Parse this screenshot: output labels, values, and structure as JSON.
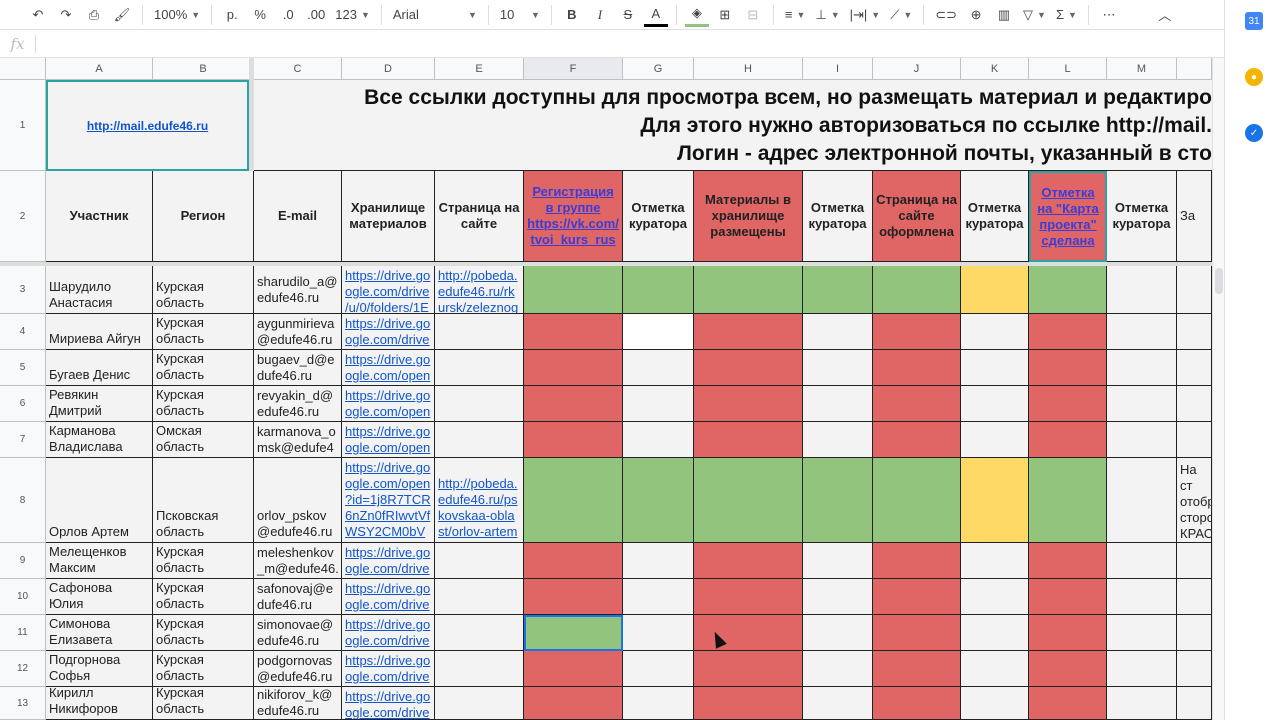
{
  "toolbar": {
    "zoom": "100%",
    "currency": "р.",
    "percent": "%",
    "dec_less": ".0",
    "dec_more": ".00",
    "format": "123",
    "font": "Arial",
    "size": "10",
    "icons": [
      "undo-icon",
      "redo-icon",
      "print-icon",
      "paint-format-icon",
      "bold-icon",
      "italic-icon",
      "strikethrough-icon",
      "text-color-icon",
      "fill-color-icon",
      "borders-icon",
      "merge-icon",
      "align-icon",
      "valign-icon",
      "wrap-icon",
      "rotate-icon",
      "link-icon",
      "comment-icon",
      "chart-icon",
      "filter-icon",
      "functions-icon",
      "more-icon",
      "collapse-icon"
    ],
    "text_color": "#000000",
    "fill_color": "#93c47d"
  },
  "formula_bar": {
    "fx": "fx",
    "value": ""
  },
  "colors": {
    "green": "#93c47d",
    "red": "#e06666",
    "yellow": "#ffd966",
    "white": "#ffffff",
    "default": "#f3f3f3"
  },
  "columns": [
    "A",
    "B",
    "C",
    "D",
    "E",
    "F",
    "G",
    "H",
    "I",
    "J",
    "K",
    "L",
    "M",
    ""
  ],
  "row_numbers": [
    "1",
    "2",
    "3",
    "4",
    "5",
    "6",
    "7",
    "8",
    "9",
    "10",
    "11",
    "12",
    "13"
  ],
  "banner": {
    "link": "http://mail.edufe46.ru",
    "lines": [
      "Все ссылки доступны для просмотра всем, но размещать материал и редактиро",
      "Для этого нужно авторизоваться по ссылке http://mail.",
      "Логин - адрес электронной почты, указанный в сто"
    ]
  },
  "headers": [
    "Участник",
    "Регион",
    "E-mail",
    "Хранилище материалов",
    "Страница на сайте",
    "Регистрация в группе https://vk.com/ tvoi_kurs_rus",
    "Отметка куратора",
    "Материалы в хранилище размещены",
    "Отметка куратора",
    "Страница на сайте оформлена",
    "Отметка куратора",
    "Отметка на \"Карта проекта\" сделана",
    "Отметка куратора",
    "За"
  ],
  "rows": [
    {
      "name": "Шарудило Анастасия",
      "region": "Курская область",
      "email": "sharudilo_a@ edufe46.ru",
      "storage": "https://drive.go ogle.com/drive /u/0/folders/1E",
      "page": "http://pobeda. edufe46.ru/rk ursk/zeleznog",
      "status": [
        "green",
        "green",
        "green",
        "green",
        "green",
        "yellow",
        "green"
      ],
      "note": ""
    },
    {
      "name": "Мириева Айгун",
      "region": "Курская область",
      "email": "aygunmirieva @edufe46.ru",
      "storage": "https://drive.go ogle.com/drive",
      "page": "",
      "status": [
        "red",
        "white",
        "red",
        "default",
        "red",
        "default",
        "red"
      ],
      "note": ""
    },
    {
      "name": "Бугаев Денис",
      "region": "Курская область",
      "email": "bugaev_d@e dufe46.ru",
      "storage": "https://drive.go ogle.com/open",
      "page": "",
      "status": [
        "red",
        "default",
        "red",
        "default",
        "red",
        "default",
        "red"
      ],
      "note": ""
    },
    {
      "name": "Ревякин Дмитрий",
      "region": "Курская область",
      "email": "revyakin_d@ edufe46.ru",
      "storage": "https://drive.go ogle.com/open",
      "page": "",
      "status": [
        "red",
        "default",
        "red",
        "default",
        "red",
        "default",
        "red"
      ],
      "note": ""
    },
    {
      "name": "Карманова Владислава",
      "region": "Омская область",
      "email": "karmanova_o msk@edufe4",
      "storage": "https://drive.go ogle.com/open",
      "page": "",
      "status": [
        "red",
        "default",
        "red",
        "default",
        "red",
        "default",
        "red"
      ],
      "note": ""
    },
    {
      "name": "Орлов Артем",
      "region": "Псковская область",
      "email": "orlov_pskov @edufe46.ru",
      "storage": "https://drive.go ogle.com/open ?id=1j8R7TCR 6nZn0fRIwvtVf WSY2CM0bV",
      "page": "http://pobeda. edufe46.ru/ps kovskaa-obla st/orlov-artem",
      "status": [
        "green",
        "green",
        "green",
        "green",
        "green",
        "yellow",
        "green"
      ],
      "note": "На ст отобр сторо КРАС Млад"
    },
    {
      "name": "Мелещенков Максим",
      "region": "Курская область",
      "email": "meleshenkov _m@edufe46.",
      "storage": "https://drive.go ogle.com/drive",
      "page": "",
      "status": [
        "red",
        "default",
        "red",
        "default",
        "red",
        "default",
        "red"
      ],
      "note": ""
    },
    {
      "name": "Сафонова Юлия",
      "region": "Курская область",
      "email": "safonovaj@e dufe46.ru",
      "storage": "https://drive.go ogle.com/drive",
      "page": "",
      "status": [
        "red",
        "default",
        "red",
        "default",
        "red",
        "default",
        "red"
      ],
      "note": ""
    },
    {
      "name": "Симонова Елизавета",
      "region": "Курская область",
      "email": "simonovae@ edufe46.ru",
      "storage": "https://drive.go ogle.com/drive",
      "page": "",
      "status": [
        "green",
        "default",
        "red",
        "default",
        "red",
        "default",
        "red"
      ],
      "note": ""
    },
    {
      "name": "Подгорнова Софья",
      "region": "Курская область",
      "email": "podgornovas @edufe46.ru",
      "storage": "https://drive.go ogle.com/drive",
      "page": "",
      "status": [
        "red",
        "default",
        "red",
        "default",
        "red",
        "default",
        "red"
      ],
      "note": ""
    },
    {
      "name": "Кирилл Никифоров",
      "region": "Курская область",
      "email": "nikiforov_k@ edufe46.ru",
      "storage": "https://drive.go ogle.com/drive",
      "page": "",
      "status": [
        "red",
        "default",
        "red",
        "default",
        "red",
        "default",
        "red"
      ],
      "note": ""
    }
  ]
}
